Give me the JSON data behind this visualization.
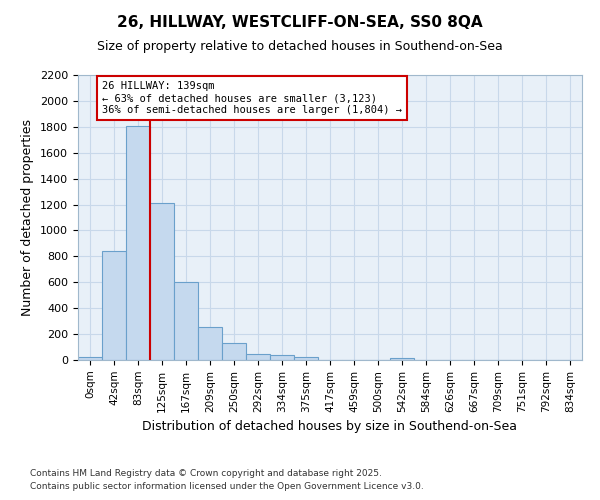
{
  "title": "26, HILLWAY, WESTCLIFF-ON-SEA, SS0 8QA",
  "subtitle": "Size of property relative to detached houses in Southend-on-Sea",
  "xlabel": "Distribution of detached houses by size in Southend-on-Sea",
  "ylabel": "Number of detached properties",
  "footnote1": "Contains HM Land Registry data © Crown copyright and database right 2025.",
  "footnote2": "Contains public sector information licensed under the Open Government Licence v3.0.",
  "bar_labels": [
    "0sqm",
    "42sqm",
    "83sqm",
    "125sqm",
    "167sqm",
    "209sqm",
    "250sqm",
    "292sqm",
    "334sqm",
    "375sqm",
    "417sqm",
    "459sqm",
    "500sqm",
    "542sqm",
    "584sqm",
    "626sqm",
    "667sqm",
    "709sqm",
    "751sqm",
    "792sqm",
    "834sqm"
  ],
  "bar_values": [
    20,
    840,
    1810,
    1210,
    600,
    255,
    130,
    50,
    40,
    25,
    0,
    0,
    0,
    15,
    0,
    0,
    0,
    0,
    0,
    0,
    0
  ],
  "bar_color": "#c5d9ee",
  "bar_edge_color": "#6aa0cb",
  "ylim": [
    0,
    2200
  ],
  "yticks": [
    0,
    200,
    400,
    600,
    800,
    1000,
    1200,
    1400,
    1600,
    1800,
    2000,
    2200
  ],
  "vline_x_index": 3.0,
  "annotation_line1": "26 HILLWAY: 139sqm",
  "annotation_line2": "← 63% of detached houses are smaller (3,123)",
  "annotation_line3": "36% of semi-detached houses are larger (1,804) →",
  "annotation_box_color": "#ffffff",
  "annotation_border_color": "#cc0000",
  "vline_color": "#cc0000",
  "grid_color": "#c8d8ea",
  "bg_color": "#e8f0f8",
  "fig_bg_color": "#ffffff",
  "title_fontsize": 11,
  "subtitle_fontsize": 9,
  "ylabel_fontsize": 9,
  "xlabel_fontsize": 9,
  "tick_fontsize": 8,
  "xtick_fontsize": 7.5,
  "footnote_fontsize": 6.5
}
